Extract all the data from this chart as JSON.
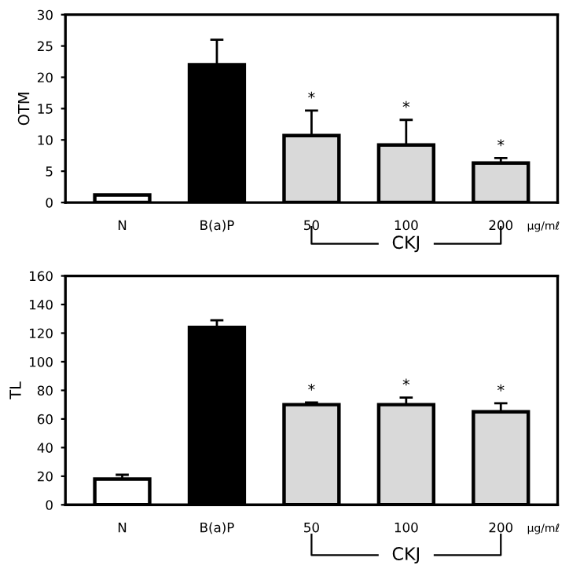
{
  "chart_data": [
    {
      "type": "bar",
      "ylabel": "OTM",
      "categories": [
        "N",
        "B(a)P",
        "50",
        "100",
        "200"
      ],
      "values": [
        1.2,
        22,
        10.7,
        9.2,
        6.3
      ],
      "errors": [
        null,
        4,
        4,
        4,
        0.8
      ],
      "colors": [
        "#ffffff",
        "#000000",
        "#d9d9d9",
        "#d9d9d9",
        "#d9d9d9"
      ],
      "ylim": [
        0,
        30
      ],
      "yticks": [
        0,
        5,
        10,
        15,
        20,
        25,
        30
      ],
      "grid": false,
      "legend": false,
      "annotations": [
        {
          "text": "*",
          "x": "50",
          "y": 14.7
        },
        {
          "text": "*",
          "x": "100",
          "y": 13.2
        },
        {
          "text": "*",
          "x": "200",
          "y": 7.1
        },
        "CKJ",
        "μg/mℓ"
      ]
    },
    {
      "type": "bar",
      "ylabel": "TL",
      "categories": [
        "N",
        "B(a)P",
        "50",
        "100",
        "200"
      ],
      "values": [
        18,
        124,
        70,
        70,
        65
      ],
      "errors": [
        3,
        5,
        1.5,
        5,
        6
      ],
      "colors": [
        "#ffffff",
        "#000000",
        "#d9d9d9",
        "#d9d9d9",
        "#d9d9d9"
      ],
      "ylim": [
        0,
        160
      ],
      "yticks": [
        0,
        20,
        40,
        60,
        80,
        100,
        120,
        140,
        160
      ],
      "grid": false,
      "legend": false,
      "annotations": [
        {
          "text": "*",
          "x": "50",
          "y": 71.5
        },
        {
          "text": "*",
          "x": "100",
          "y": 75
        },
        {
          "text": "*",
          "x": "200",
          "y": 71
        },
        "CKJ",
        "μg/mℓ"
      ]
    }
  ]
}
